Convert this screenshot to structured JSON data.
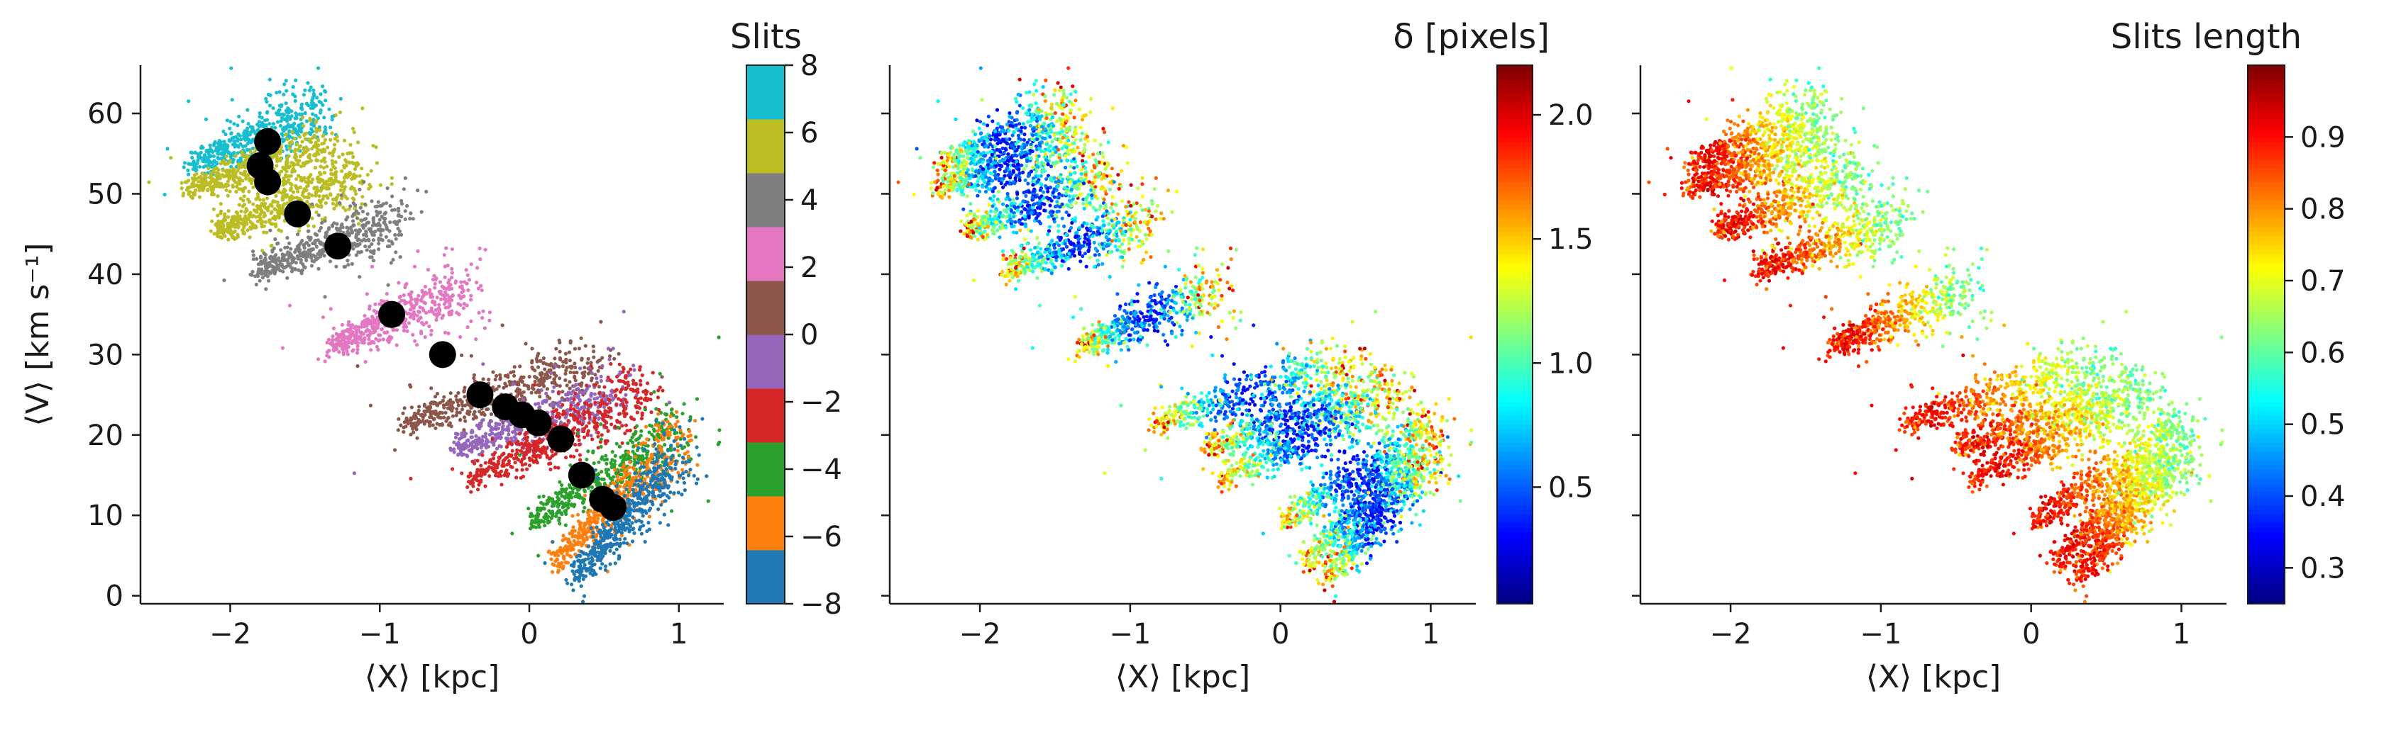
{
  "figure": {
    "background": "#ffffff",
    "panel_count": 3
  },
  "chart_data": [
    {
      "type": "scatter",
      "panel": "left",
      "xlabel": "⟨X⟩ [kpc]",
      "ylabel": "⟨V⟩ [km s⁻¹]",
      "xlim": [
        -2.6,
        1.3
      ],
      "ylim": [
        -1,
        66
      ],
      "x_ticks": [
        -2,
        -1,
        0,
        1
      ],
      "x_tick_labels": [
        "−2",
        "−1",
        "0",
        "1"
      ],
      "y_ticks": [
        0,
        10,
        20,
        30,
        40,
        50,
        60
      ],
      "y_tick_labels": [
        "0",
        "10",
        "20",
        "30",
        "40",
        "50",
        "60"
      ],
      "grid": false,
      "color_by": "slit index (discrete)",
      "colorbar": {
        "title": "Slits",
        "type": "discrete",
        "range": [
          -8,
          8
        ],
        "ticks": [
          -8,
          -6,
          -4,
          -2,
          0,
          2,
          4,
          6,
          8
        ],
        "tick_labels": [
          "−8",
          "−6",
          "−4",
          "−2",
          "0",
          "2",
          "4",
          "6",
          "8"
        ],
        "colors": [
          "#1f77b4",
          "#ff7f0e",
          "#2ca02c",
          "#d62728",
          "#9467bd",
          "#8c564b",
          "#e377c2",
          "#7f7f7f",
          "#bcbd22",
          "#17becf"
        ]
      },
      "slit_clouds": [
        {
          "slit": 8,
          "color": "#17becf",
          "x_range": [
            -2.2,
            -1.3
          ],
          "v_range": [
            53,
            61
          ]
        },
        {
          "slit": 7,
          "color": "#bcbd22",
          "x_range": [
            -2.3,
            -1.2
          ],
          "v_range": [
            48,
            55
          ]
        },
        {
          "slit": 6,
          "color": "#bcbd22",
          "x_range": [
            -2.0,
            -1.1
          ],
          "v_range": [
            43,
            52
          ]
        },
        {
          "slit": 5,
          "color": "#7f7f7f",
          "x_range": [
            -1.8,
            -0.8
          ],
          "v_range": [
            38,
            48
          ]
        },
        {
          "slit": 3,
          "color": "#e377c2",
          "x_range": [
            -1.3,
            -0.4
          ],
          "v_range": [
            27,
            38
          ]
        },
        {
          "slit": 1,
          "color": "#8c564b",
          "x_range": [
            -0.8,
            0.5
          ],
          "v_range": [
            20,
            29
          ]
        },
        {
          "slit": -1,
          "color": "#9467bd",
          "x_range": [
            -0.5,
            0.6
          ],
          "v_range": [
            17,
            25
          ]
        },
        {
          "slit": -3,
          "color": "#d62728",
          "x_range": [
            -0.4,
            0.8
          ],
          "v_range": [
            13,
            25
          ]
        },
        {
          "slit": -5,
          "color": "#2ca02c",
          "x_range": [
            0.0,
            1.0
          ],
          "v_range": [
            7,
            21
          ]
        },
        {
          "slit": -7,
          "color": "#ff7f0e",
          "x_range": [
            0.2,
            1.0
          ],
          "v_range": [
            3,
            20
          ]
        },
        {
          "slit": -8,
          "color": "#1f77b4",
          "x_range": [
            0.3,
            1.0
          ],
          "v_range": [
            1,
            18
          ]
        }
      ],
      "mean_points": {
        "color": "#000000",
        "x": [
          -1.75,
          -1.8,
          -1.75,
          -1.55,
          -1.28,
          -0.92,
          -0.58,
          -0.33,
          -0.16,
          -0.05,
          0.06,
          0.21,
          0.35,
          0.49,
          0.56
        ],
        "y": [
          56.5,
          53.5,
          51.5,
          47.5,
          43.5,
          35.0,
          30.0,
          25.0,
          23.5,
          22.5,
          21.5,
          19.5,
          15.0,
          12.0,
          11.0
        ]
      }
    },
    {
      "type": "scatter",
      "panel": "middle",
      "xlabel": "⟨X⟩ [kpc]",
      "xlim": [
        -2.6,
        1.3
      ],
      "ylim": [
        -1,
        66
      ],
      "x_ticks": [
        -2,
        -1,
        0,
        1
      ],
      "x_tick_labels": [
        "−2",
        "−1",
        "0",
        "1"
      ],
      "grid": false,
      "color_by": "δ [pixels]",
      "colorbar": {
        "title": "δ [pixels]",
        "type": "continuous",
        "colormap": "jet",
        "range": [
          0.03,
          2.2
        ],
        "ticks": [
          0.5,
          1.0,
          1.5,
          2.0
        ],
        "tick_labels": [
          "0.5",
          "1.0",
          "1.5",
          "2.0"
        ]
      }
    },
    {
      "type": "scatter",
      "panel": "right",
      "xlabel": "⟨X⟩ [kpc]",
      "xlim": [
        -2.6,
        1.3
      ],
      "ylim": [
        -1,
        66
      ],
      "x_ticks": [
        -2,
        -1,
        0,
        1
      ],
      "x_tick_labels": [
        "−2",
        "−1",
        "0",
        "1"
      ],
      "grid": false,
      "color_by": "Slits length",
      "colorbar": {
        "title": "Slits length",
        "type": "continuous",
        "colormap": "jet",
        "range": [
          0.25,
          1.0
        ],
        "ticks": [
          0.3,
          0.4,
          0.5,
          0.6,
          0.7,
          0.8,
          0.9
        ],
        "tick_labels": [
          "0.3",
          "0.4",
          "0.5",
          "0.6",
          "0.7",
          "0.8",
          "0.9"
        ]
      }
    }
  ]
}
